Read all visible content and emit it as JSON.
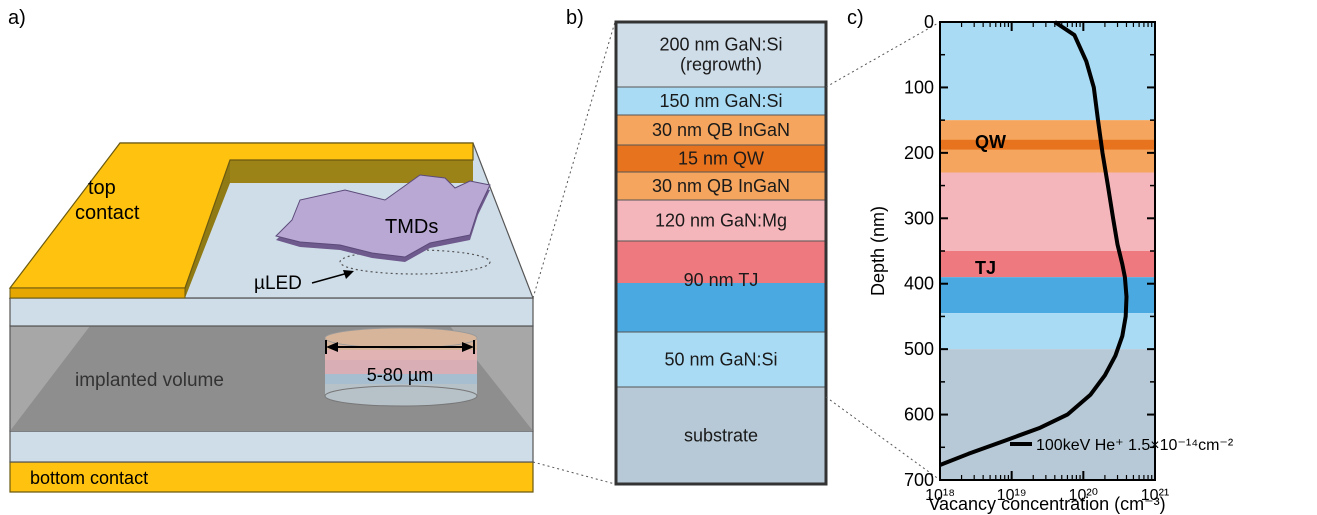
{
  "panels": {
    "a": {
      "label": "a)",
      "top_contact": [
        "top",
        "contact"
      ],
      "tmds": "TMDs",
      "uled": "µLED",
      "diameter": "5-80 µm",
      "implanted_volume": "implanted volume",
      "bottom_contact": "bottom contact"
    },
    "b": {
      "label": "b)",
      "layers": [
        {
          "lines": [
            "200 nm GaN:Si",
            "(regrowth)"
          ],
          "color": "#cfdde9"
        },
        {
          "lines": [
            "150 nm GaN:Si"
          ],
          "color": "#a9dbf4"
        },
        {
          "lines": [
            "30 nm QB InGaN"
          ],
          "color": "#f5a55d"
        },
        {
          "lines": [
            "15 nm QW"
          ],
          "color": "#e8731e"
        },
        {
          "lines": [
            "30 nm QB InGaN"
          ],
          "color": "#f5a55d"
        },
        {
          "lines": [
            "120 nm GaN:Mg"
          ],
          "color": "#f5b6bb"
        },
        {
          "lines": [
            "90 nm TJ"
          ],
          "color": "#ee7a80",
          "color2": "#4aa9e1"
        },
        {
          "lines": [
            "50 nm GaN:Si"
          ],
          "color": "#a9dbf4"
        },
        {
          "lines": [
            "substrate"
          ],
          "color": "#b7c9d6"
        }
      ]
    },
    "c": {
      "label": "c)",
      "band_labels": {
        "qw": "QW",
        "tj": "TJ"
      },
      "legend": "100keV He⁺ 1.5×10⁻¹⁴cm⁻²"
    }
  },
  "chart_data": {
    "type": "line",
    "xlabel": "Vacancy concentration (cm⁻³)",
    "ylabel": "Depth (nm)",
    "x_scale": "log",
    "xlim": [
      1e+18,
      1e+21
    ],
    "ylim": [
      700,
      0
    ],
    "x_ticks": [
      "10¹⁸",
      "10¹⁹",
      "10²⁰",
      "10²¹"
    ],
    "y_ticks": [
      "0",
      "100",
      "200",
      "300",
      "400",
      "500",
      "600",
      "700"
    ],
    "series": [
      {
        "name": "100keV He⁺ 1.5×10⁻¹⁴cm⁻²",
        "x": [
          4e+19,
          7.5e+19,
          1.1e+20,
          1.4e+20,
          1.6e+20,
          1.85e+20,
          2.2e+20,
          2.6e+20,
          3e+20,
          3.5e+20,
          3.8e+20,
          4e+20,
          3.9e+20,
          3.5e+20,
          2.8e+20,
          2e+20,
          1.25e+20,
          6e+19,
          2.5e+19,
          8e+18,
          2.5e+18,
          1e+18
        ],
        "y": [
          0,
          20,
          60,
          100,
          150,
          200,
          250,
          300,
          340,
          370,
          390,
          420,
          450,
          480,
          510,
          540,
          570,
          600,
          620,
          640,
          660,
          677
        ]
      }
    ],
    "bands": [
      {
        "from": 0,
        "to": 150,
        "color": "#a9dbf4"
      },
      {
        "from": 150,
        "to": 230,
        "color": "#f5a55d"
      },
      {
        "from": 180,
        "to": 195,
        "color": "#e8731e"
      },
      {
        "from": 230,
        "to": 350,
        "color": "#f5b6bb"
      },
      {
        "from": 350,
        "to": 390,
        "color": "#ee7a80"
      },
      {
        "from": 390,
        "to": 445,
        "color": "#4aa9e1"
      },
      {
        "from": 445,
        "to": 500,
        "color": "#a9dbf4"
      },
      {
        "from": 500,
        "to": 700,
        "color": "#b7c9d6"
      }
    ]
  }
}
